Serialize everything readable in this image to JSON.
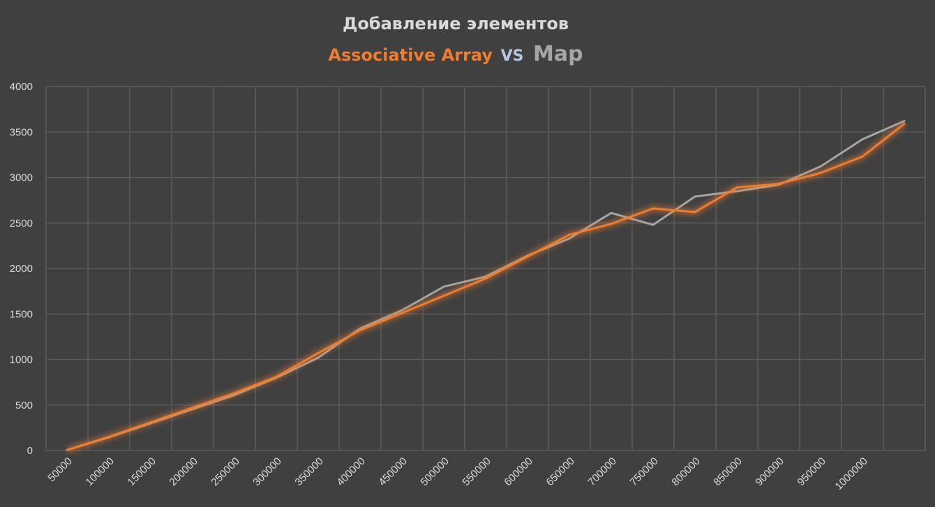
{
  "chart_data": {
    "type": "line",
    "title": "Добавление элементов",
    "subtitle": {
      "series_a": "Associative Array",
      "separator": "VS",
      "series_b": "Map"
    },
    "xlabel": "",
    "ylabel": "",
    "ylim": [
      0,
      4000
    ],
    "yticks": [
      0,
      500,
      1000,
      1500,
      2000,
      2500,
      3000,
      3500,
      4000
    ],
    "categories": [
      "50000",
      "100000",
      "150000",
      "200000",
      "250000",
      "300000",
      "350000",
      "400000",
      "450000",
      "500000",
      "550000",
      "600000",
      "650000",
      "700000",
      "750000",
      "800000",
      "850000",
      "900000",
      "950000",
      "1000000",
      ""
    ],
    "grid": true,
    "legend": "none",
    "series": [
      {
        "key": "associative-array",
        "color": "#ed7d31",
        "glow": true,
        "values": [
          5,
          150,
          310,
          470,
          630,
          810,
          1070,
          1320,
          1510,
          1700,
          1890,
          2130,
          2370,
          2490,
          2660,
          2620,
          2890,
          2930,
          3050,
          3230,
          3590
        ]
      },
      {
        "key": "map",
        "color": "#a5a5a5",
        "glow": false,
        "values": [
          5,
          145,
          300,
          455,
          610,
          800,
          1020,
          1340,
          1540,
          1800,
          1910,
          2140,
          2330,
          2610,
          2480,
          2790,
          2850,
          2920,
          3120,
          3420,
          3620
        ]
      }
    ]
  },
  "colors": {
    "background": "#404040",
    "grid": "#5a5a5a",
    "title": "#d9d9d9",
    "subtitle_a": "#ed7d31",
    "subtitle_vs": "#b4c7e7",
    "subtitle_b": "#a5a5a5",
    "tick": "#d9d9d9"
  }
}
